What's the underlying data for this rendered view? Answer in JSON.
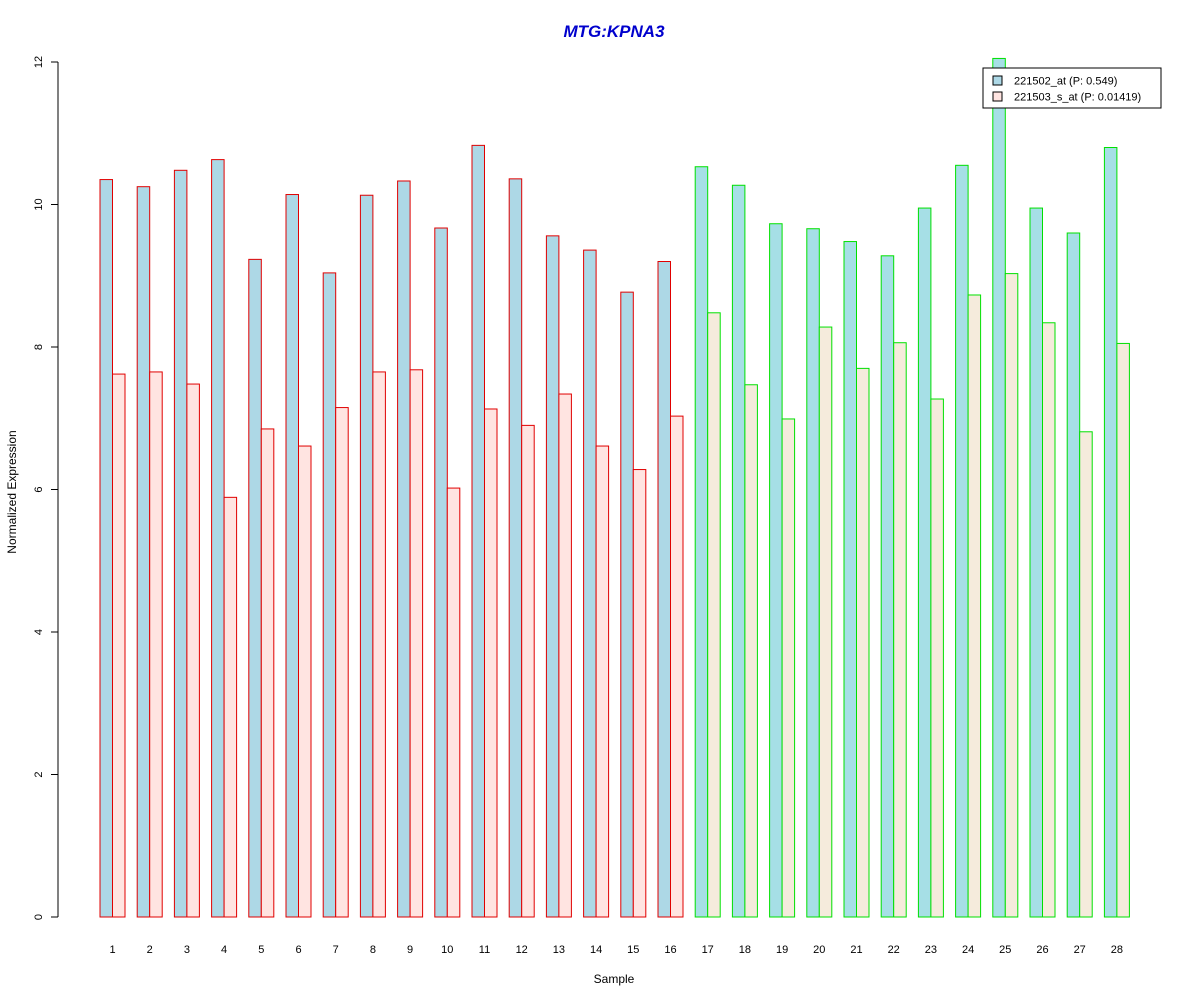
{
  "chart_data": {
    "type": "bar",
    "title": "MTG:KPNA3",
    "xlabel": "Sample",
    "ylabel": "Normalized Expression",
    "ylim": [
      0,
      12
    ],
    "yticks": [
      0,
      2,
      4,
      6,
      8,
      10,
      12
    ],
    "categories": [
      "1",
      "2",
      "3",
      "4",
      "5",
      "6",
      "7",
      "8",
      "9",
      "10",
      "11",
      "12",
      "13",
      "14",
      "15",
      "16",
      "17",
      "18",
      "19",
      "20",
      "21",
      "22",
      "23",
      "24",
      "25",
      "26",
      "27",
      "28"
    ],
    "series": [
      {
        "name": "221502_at (P: 0.549)",
        "fill": "#add8e6",
        "values": [
          10.35,
          10.25,
          10.48,
          10.63,
          9.23,
          10.14,
          9.04,
          10.13,
          10.33,
          9.67,
          10.83,
          10.36,
          9.56,
          9.36,
          8.77,
          9.2,
          10.53,
          10.27,
          9.73,
          9.66,
          9.48,
          9.28,
          9.95,
          10.55,
          12.05,
          9.95,
          9.6,
          10.8
        ]
      },
      {
        "name": "221503_s_at (P: 0.01419)",
        "fill": "#ffe4e1",
        "values": [
          7.62,
          7.65,
          7.48,
          5.89,
          6.85,
          6.61,
          7.15,
          7.65,
          7.68,
          6.02,
          7.13,
          6.9,
          7.34,
          6.61,
          6.28,
          7.03,
          8.48,
          7.47,
          6.99,
          8.28,
          7.7,
          8.06,
          7.27,
          8.73,
          9.03,
          8.34,
          6.81,
          8.05
        ]
      }
    ],
    "group_border_colors": [
      "#e00000",
      "#e00000",
      "#e00000",
      "#e00000",
      "#e00000",
      "#e00000",
      "#e00000",
      "#e00000",
      "#e00000",
      "#e00000",
      "#e00000",
      "#e00000",
      "#e00000",
      "#e00000",
      "#e00000",
      "#e00000",
      "#00e000",
      "#00e000",
      "#00e000",
      "#00e000",
      "#00e000",
      "#00e000",
      "#00e000",
      "#00e000",
      "#00e000",
      "#00e000",
      "#00e000",
      "#00e000"
    ],
    "second_series_fill_group2": "#f5ebdc",
    "first_series_fill_group2": "#a6dfe6",
    "title_color": "#0000cd",
    "legend_position": "top-right",
    "grid": false
  }
}
